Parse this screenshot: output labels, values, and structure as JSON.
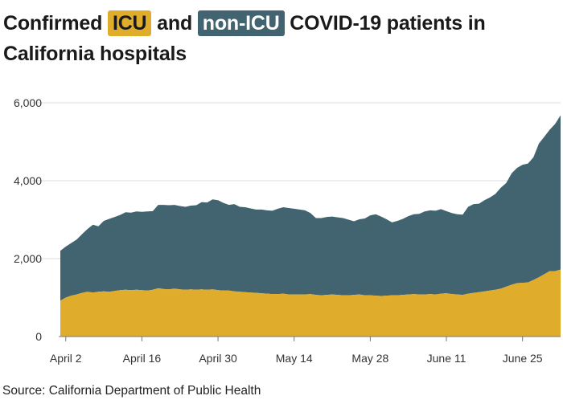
{
  "title": {
    "part1": "Confirmed ",
    "icu_label": "ICU",
    "part2": " and ",
    "nonicu_label": "non-ICU",
    "part3": " COVID-19 patients in California hospitals"
  },
  "source": "Source: California Department of Public Health",
  "colors": {
    "icu": "#e0ac2b",
    "non_icu": "#426470",
    "grid": "#dddddd",
    "baseline": "#777777"
  },
  "chart_data": {
    "type": "area",
    "stacked": true,
    "title": "Confirmed ICU and non-ICU COVID-19 patients in California hospitals",
    "xlabel": "",
    "ylabel": "",
    "ylim": [
      0,
      6000
    ],
    "yticks": [
      0,
      2000,
      4000,
      6000
    ],
    "ytick_labels": [
      "0",
      "2,000",
      "4,000",
      "6,000"
    ],
    "xticks": [
      "April 2",
      "April 16",
      "April 30",
      "May 14",
      "May 28",
      "June 11",
      "June 25"
    ],
    "grid": true,
    "x_start": "2020-04-01",
    "x": [
      "Apr 1",
      "Apr 2",
      "Apr 3",
      "Apr 4",
      "Apr 5",
      "Apr 6",
      "Apr 7",
      "Apr 8",
      "Apr 9",
      "Apr 10",
      "Apr 11",
      "Apr 12",
      "Apr 13",
      "Apr 14",
      "Apr 15",
      "Apr 16",
      "Apr 17",
      "Apr 18",
      "Apr 19",
      "Apr 20",
      "Apr 21",
      "Apr 22",
      "Apr 23",
      "Apr 24",
      "Apr 25",
      "Apr 26",
      "Apr 27",
      "Apr 28",
      "Apr 29",
      "Apr 30",
      "May 1",
      "May 2",
      "May 3",
      "May 4",
      "May 5",
      "May 6",
      "May 7",
      "May 8",
      "May 9",
      "May 10",
      "May 11",
      "May 12",
      "May 13",
      "May 14",
      "May 15",
      "May 16",
      "May 17",
      "May 18",
      "May 19",
      "May 20",
      "May 21",
      "May 22",
      "May 23",
      "May 24",
      "May 25",
      "May 26",
      "May 27",
      "May 28",
      "May 29",
      "May 30",
      "May 31",
      "Jun 1",
      "Jun 2",
      "Jun 3",
      "Jun 4",
      "Jun 5",
      "Jun 6",
      "Jun 7",
      "Jun 8",
      "Jun 9",
      "Jun 10",
      "Jun 11",
      "Jun 12",
      "Jun 13",
      "Jun 14",
      "Jun 15",
      "Jun 16",
      "Jun 17",
      "Jun 18",
      "Jun 19",
      "Jun 20",
      "Jun 21",
      "Jun 22",
      "Jun 23",
      "Jun 24",
      "Jun 25",
      "Jun 26",
      "Jun 27",
      "Jun 28",
      "Jun 29",
      "Jun 30",
      "Jul 1",
      "Jul 2"
    ],
    "series": [
      {
        "name": "ICU",
        "values": [
          920,
          1000,
          1050,
          1080,
          1120,
          1150,
          1130,
          1150,
          1160,
          1150,
          1170,
          1190,
          1200,
          1190,
          1200,
          1190,
          1180,
          1200,
          1240,
          1220,
          1210,
          1230,
          1210,
          1200,
          1210,
          1200,
          1210,
          1200,
          1210,
          1190,
          1180,
          1180,
          1160,
          1150,
          1140,
          1130,
          1120,
          1110,
          1100,
          1090,
          1090,
          1100,
          1080,
          1080,
          1080,
          1080,
          1090,
          1070,
          1060,
          1070,
          1080,
          1070,
          1060,
          1060,
          1070,
          1080,
          1060,
          1060,
          1050,
          1040,
          1050,
          1060,
          1060,
          1070,
          1080,
          1090,
          1080,
          1080,
          1090,
          1080,
          1100,
          1110,
          1090,
          1080,
          1070,
          1100,
          1120,
          1140,
          1160,
          1180,
          1200,
          1230,
          1280,
          1330,
          1370,
          1380,
          1390,
          1450,
          1520,
          1600,
          1680,
          1680,
          1720
        ]
      },
      {
        "name": "non-ICU",
        "values": [
          1280,
          1310,
          1350,
          1410,
          1510,
          1610,
          1740,
          1680,
          1810,
          1870,
          1900,
          1930,
          1990,
          1990,
          2010,
          2010,
          2030,
          2020,
          2140,
          2160,
          2160,
          2150,
          2140,
          2130,
          2150,
          2170,
          2240,
          2240,
          2310,
          2310,
          2250,
          2200,
          2240,
          2180,
          2180,
          2160,
          2140,
          2150,
          2140,
          2140,
          2190,
          2220,
          2220,
          2200,
          2180,
          2160,
          2080,
          1970,
          1980,
          2000,
          2000,
          1990,
          1980,
          1940,
          1890,
          1930,
          1970,
          2050,
          2090,
          2040,
          1960,
          1870,
          1910,
          1950,
          2010,
          2050,
          2070,
          2130,
          2150,
          2150,
          2170,
          2110,
          2080,
          2060,
          2060,
          2230,
          2280,
          2270,
          2340,
          2390,
          2460,
          2590,
          2660,
          2860,
          2960,
          3030,
          3050,
          3150,
          3430,
          3530,
          3630,
          3780,
          3960
        ]
      }
    ]
  }
}
